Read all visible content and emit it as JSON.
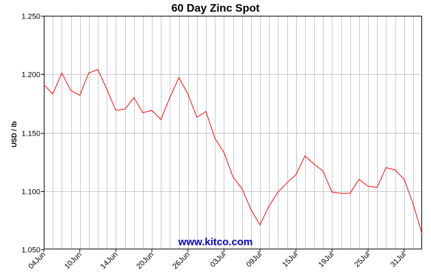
{
  "chart_data": {
    "type": "line",
    "title": "60 Day Zinc Spot",
    "ylabel": "USD / lb",
    "xlabel": "",
    "ylim": [
      1.05,
      1.25
    ],
    "y_ticks": [
      "1.050",
      "1.100",
      "1.150",
      "1.200",
      "1.250"
    ],
    "x_ticks": [
      "04Jun",
      "10Jun",
      "14Jun",
      "20Jun",
      "26Jun",
      "03Jul",
      "09Jul",
      "15Jul",
      "19Jul",
      "25Jul",
      "31Jul"
    ],
    "grid": true,
    "watermark": "www.kitco.com",
    "series": [
      {
        "color": "#ff0000",
        "values": [
          1.191,
          1.183,
          1.201,
          1.186,
          1.182,
          1.201,
          1.204,
          1.187,
          1.169,
          1.17,
          1.18,
          1.167,
          1.169,
          1.161,
          1.18,
          1.197,
          1.183,
          1.163,
          1.168,
          1.145,
          1.133,
          1.112,
          1.102,
          1.084,
          1.071,
          1.087,
          1.099,
          1.107,
          1.114,
          1.13,
          1.123,
          1.117,
          1.099,
          1.098,
          1.098,
          1.11,
          1.104,
          1.103,
          1.12,
          1.118,
          1.11,
          1.089,
          1.063
        ]
      }
    ]
  }
}
